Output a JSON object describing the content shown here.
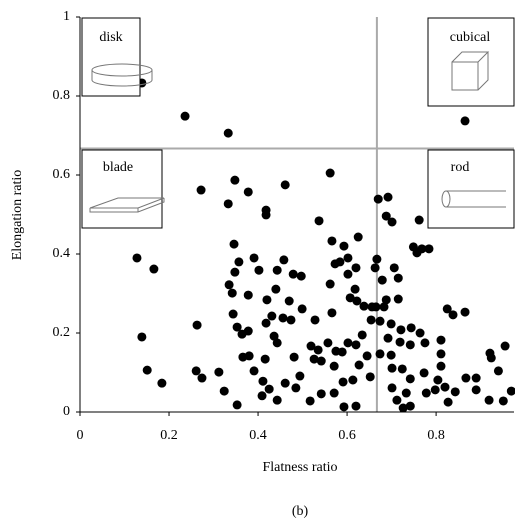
{
  "chart_data": {
    "type": "scatter",
    "x_label": "Flatness ratio",
    "y_label": "Elongation ratio",
    "caption": "(b)",
    "color": "#000000",
    "xlim": [
      0,
      0.975
    ],
    "ylim": [
      0,
      1
    ],
    "xticks": [
      0,
      0.2,
      0.4,
      0.6,
      0.8
    ],
    "yticks": [
      0,
      0.2,
      0.4,
      0.6,
      0.8,
      1
    ],
    "reference_lines": {
      "x": 0.667,
      "y": 0.667
    },
    "regions": [
      "disk",
      "cubical",
      "blade",
      "rod"
    ],
    "x": [
      0.139,
      0.236,
      0.333,
      0.865,
      0.128,
      0.166,
      0.139,
      0.151,
      0.184,
      0.272,
      0.263,
      0.261,
      0.274,
      0.312,
      0.324,
      0.333,
      0.348,
      0.378,
      0.418,
      0.418,
      0.461,
      0.562,
      0.346,
      0.335,
      0.342,
      0.348,
      0.357,
      0.391,
      0.402,
      0.443,
      0.458,
      0.479,
      0.497,
      0.44,
      0.378,
      0.42,
      0.47,
      0.499,
      0.537,
      0.566,
      0.593,
      0.625,
      0.573,
      0.584,
      0.602,
      0.62,
      0.602,
      0.562,
      0.618,
      0.607,
      0.622,
      0.638,
      0.656,
      0.654,
      0.528,
      0.566,
      0.344,
      0.353,
      0.364,
      0.378,
      0.418,
      0.431,
      0.456,
      0.474,
      0.436,
      0.443,
      0.366,
      0.38,
      0.416,
      0.481,
      0.519,
      0.535,
      0.557,
      0.575,
      0.602,
      0.62,
      0.634,
      0.526,
      0.542,
      0.571,
      0.589,
      0.627,
      0.645,
      0.652,
      0.391,
      0.411,
      0.425,
      0.409,
      0.461,
      0.485,
      0.494,
      0.353,
      0.443,
      0.517,
      0.542,
      0.571,
      0.593,
      0.62,
      0.591,
      0.613,
      0.67,
      0.692,
      0.688,
      0.701,
      0.757,
      0.749,
      0.768,
      0.762,
      0.784,
      0.667,
      0.663,
      0.706,
      0.715,
      0.679,
      0.688,
      0.715,
      0.665,
      0.683,
      0.674,
      0.699,
      0.721,
      0.744,
      0.692,
      0.719,
      0.742,
      0.764,
      0.775,
      0.811,
      0.825,
      0.838,
      0.865,
      0.674,
      0.699,
      0.701,
      0.724,
      0.742,
      0.773,
      0.811,
      0.811,
      0.804,
      0.82,
      0.798,
      0.778,
      0.733,
      0.712,
      0.726,
      0.742,
      0.701,
      0.843,
      0.827,
      0.867,
      0.89,
      0.89,
      0.921,
      0.924,
      0.94,
      0.955,
      0.969,
      0.919,
      0.951
    ],
    "y": [
      0.833,
      0.749,
      0.706,
      0.737,
      0.39,
      0.362,
      0.19,
      0.106,
      0.073,
      0.562,
      0.22,
      0.104,
      0.086,
      0.101,
      0.053,
      0.527,
      0.587,
      0.557,
      0.511,
      0.499,
      0.575,
      0.605,
      0.425,
      0.322,
      0.301,
      0.354,
      0.38,
      0.39,
      0.359,
      0.359,
      0.385,
      0.349,
      0.344,
      0.311,
      0.296,
      0.284,
      0.281,
      0.261,
      0.484,
      0.433,
      0.42,
      0.443,
      0.375,
      0.38,
      0.39,
      0.365,
      0.349,
      0.324,
      0.311,
      0.289,
      0.281,
      0.268,
      0.266,
      0.233,
      0.233,
      0.251,
      0.248,
      0.215,
      0.197,
      0.205,
      0.225,
      0.243,
      0.238,
      0.233,
      0.192,
      0.175,
      0.139,
      0.142,
      0.134,
      0.139,
      0.167,
      0.157,
      0.175,
      0.154,
      0.175,
      0.17,
      0.195,
      0.134,
      0.129,
      0.116,
      0.152,
      0.119,
      0.142,
      0.089,
      0.104,
      0.078,
      0.058,
      0.041,
      0.073,
      0.061,
      0.091,
      0.018,
      0.03,
      0.028,
      0.046,
      0.048,
      0.013,
      0.015,
      0.076,
      0.081,
      0.539,
      0.544,
      0.496,
      0.481,
      0.403,
      0.418,
      0.413,
      0.486,
      0.413,
      0.387,
      0.365,
      0.365,
      0.339,
      0.334,
      0.284,
      0.286,
      0.266,
      0.266,
      0.23,
      0.223,
      0.208,
      0.213,
      0.187,
      0.177,
      0.17,
      0.2,
      0.175,
      0.182,
      0.261,
      0.246,
      0.253,
      0.147,
      0.144,
      0.111,
      0.109,
      0.084,
      0.099,
      0.147,
      0.116,
      0.081,
      0.063,
      0.056,
      0.048,
      0.048,
      0.03,
      0.01,
      0.015,
      0.061,
      0.051,
      0.025,
      0.086,
      0.086,
      0.056,
      0.149,
      0.137,
      0.104,
      0.167,
      0.053,
      0.03,
      0.028
    ]
  }
}
